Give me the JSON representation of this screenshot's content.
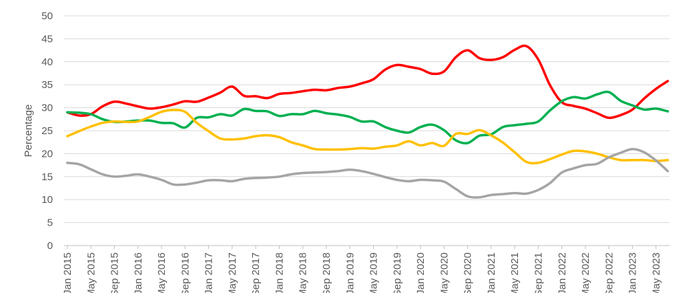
{
  "chart_data": {
    "type": "line",
    "title": "",
    "xlabel": "",
    "ylabel": "Percentage",
    "ylim": [
      0,
      50
    ],
    "y_ticks": [
      0,
      5,
      10,
      15,
      20,
      25,
      30,
      35,
      40,
      45,
      50
    ],
    "grid": true,
    "legend": "none",
    "x_start": "Jan 2015",
    "x_end": "Jul 2023",
    "x_tick_labels": [
      "Jan 2015",
      "May 2015",
      "Sep 2015",
      "Jan 2016",
      "May 2016",
      "Sep 2016",
      "Jan 2017",
      "May 2017",
      "Sep 2017",
      "Jan 2018",
      "May 2018",
      "Sep 2018",
      "Jan 2019",
      "May 2019",
      "Sep 2019",
      "Jan 2020",
      "May 2020",
      "Sep 2020",
      "Jan 2021",
      "May 2021",
      "Sep 2021",
      "Jan 2022",
      "May 2022",
      "Sep 2022",
      "Jan 2023",
      "May 2023"
    ],
    "series": [
      {
        "color": "#ff0000",
        "points": [
          [
            "Jan 2015",
            29
          ],
          [
            "Mar 2015",
            28.3
          ],
          [
            "May 2015",
            28.6
          ],
          [
            "Jul 2015",
            30.3
          ],
          [
            "Sep 2015",
            31.3
          ],
          [
            "Nov 2015",
            30.9
          ],
          [
            "Jan 2016",
            30.3
          ],
          [
            "Mar 2016",
            29.8
          ],
          [
            "May 2016",
            30.1
          ],
          [
            "Jul 2016",
            30.7
          ],
          [
            "Sep 2016",
            31.4
          ],
          [
            "Nov 2016",
            31.3
          ],
          [
            "Jan 2017",
            32.2
          ],
          [
            "Mar 2017",
            33.3
          ],
          [
            "May 2017",
            34.6
          ],
          [
            "Jul 2017",
            32.6
          ],
          [
            "Sep 2017",
            32.5
          ],
          [
            "Nov 2017",
            32.1
          ],
          [
            "Jan 2018",
            33
          ],
          [
            "Mar 2018",
            33.2
          ],
          [
            "May 2018",
            33.6
          ],
          [
            "Jul 2018",
            33.9
          ],
          [
            "Sep 2018",
            33.8
          ],
          [
            "Nov 2018",
            34.3
          ],
          [
            "Jan 2019",
            34.6
          ],
          [
            "Mar 2019",
            35.3
          ],
          [
            "May 2019",
            36.2
          ],
          [
            "Jul 2019",
            38.3
          ],
          [
            "Sep 2019",
            39.3
          ],
          [
            "Nov 2019",
            38.9
          ],
          [
            "Jan 2020",
            38.4
          ],
          [
            "Mar 2020",
            37.4
          ],
          [
            "May 2020",
            37.9
          ],
          [
            "Jul 2020",
            41
          ],
          [
            "Sep 2020",
            42.5
          ],
          [
            "Nov 2020",
            40.8
          ],
          [
            "Jan 2021",
            40.4
          ],
          [
            "Mar 2021",
            41
          ],
          [
            "May 2021",
            42.6
          ],
          [
            "Jul 2021",
            43.4
          ],
          [
            "Sep 2021",
            40.5
          ],
          [
            "Nov 2021",
            34.9
          ],
          [
            "Jan 2022",
            31.2
          ],
          [
            "Mar 2022",
            30.4
          ],
          [
            "May 2022",
            29.8
          ],
          [
            "Jul 2022",
            28.8
          ],
          [
            "Sep 2022",
            27.8
          ],
          [
            "Nov 2022",
            28.4
          ],
          [
            "Jan 2023",
            29.6
          ],
          [
            "Mar 2023",
            32
          ],
          [
            "May 2023",
            34.1
          ],
          [
            "Jul 2023",
            35.8
          ]
        ]
      },
      {
        "color": "#00b050",
        "points": [
          [
            "Jan 2015",
            29
          ],
          [
            "Mar 2015",
            28.9
          ],
          [
            "May 2015",
            28.6
          ],
          [
            "Jul 2015",
            27.5
          ],
          [
            "Sep 2015",
            26.9
          ],
          [
            "Nov 2015",
            27
          ],
          [
            "Jan 2016",
            27.2
          ],
          [
            "Mar 2016",
            27.2
          ],
          [
            "May 2016",
            26.7
          ],
          [
            "Jul 2016",
            26.6
          ],
          [
            "Sep 2016",
            25.7
          ],
          [
            "Nov 2016",
            27.8
          ],
          [
            "Jan 2017",
            27.9
          ],
          [
            "Mar 2017",
            28.6
          ],
          [
            "May 2017",
            28.3
          ],
          [
            "Jul 2017",
            29.7
          ],
          [
            "Sep 2017",
            29.3
          ],
          [
            "Nov 2017",
            29.2
          ],
          [
            "Jan 2018",
            28.2
          ],
          [
            "Mar 2018",
            28.6
          ],
          [
            "May 2018",
            28.6
          ],
          [
            "Jul 2018",
            29.3
          ],
          [
            "Sep 2018",
            28.8
          ],
          [
            "Nov 2018",
            28.5
          ],
          [
            "Jan 2019",
            28
          ],
          [
            "Mar 2019",
            27
          ],
          [
            "May 2019",
            27
          ],
          [
            "Jul 2019",
            25.8
          ],
          [
            "Sep 2019",
            25
          ],
          [
            "Nov 2019",
            24.6
          ],
          [
            "Jan 2020",
            25.8
          ],
          [
            "Mar 2020",
            26.3
          ],
          [
            "May 2020",
            25.1
          ],
          [
            "Jul 2020",
            22.9
          ],
          [
            "Sep 2020",
            22.3
          ],
          [
            "Nov 2020",
            23.9
          ],
          [
            "Jan 2021",
            24.2
          ],
          [
            "Mar 2021",
            25.8
          ],
          [
            "May 2021",
            26.2
          ],
          [
            "Jul 2021",
            26.5
          ],
          [
            "Sep 2021",
            27
          ],
          [
            "Nov 2021",
            29.4
          ],
          [
            "Jan 2022",
            31.4
          ],
          [
            "Mar 2022",
            32.3
          ],
          [
            "May 2022",
            32
          ],
          [
            "Jul 2022",
            32.9
          ],
          [
            "Sep 2022",
            33.4
          ],
          [
            "Nov 2022",
            31.5
          ],
          [
            "Jan 2023",
            30.5
          ],
          [
            "Mar 2023",
            29.6
          ],
          [
            "May 2023",
            29.8
          ],
          [
            "Jul 2023",
            29.2
          ]
        ]
      },
      {
        "color": "#ffc000",
        "points": [
          [
            "Jan 2015",
            23.8
          ],
          [
            "Mar 2015",
            24.9
          ],
          [
            "May 2015",
            25.9
          ],
          [
            "Jul 2015",
            26.7
          ],
          [
            "Sep 2015",
            27
          ],
          [
            "Nov 2015",
            26.9
          ],
          [
            "Jan 2016",
            27
          ],
          [
            "Mar 2016",
            28
          ],
          [
            "May 2016",
            29.1
          ],
          [
            "Jul 2016",
            29.5
          ],
          [
            "Sep 2016",
            29.1
          ],
          [
            "Nov 2016",
            26.7
          ],
          [
            "Jan 2017",
            24.9
          ],
          [
            "Mar 2017",
            23.3
          ],
          [
            "May 2017",
            23.1
          ],
          [
            "Jul 2017",
            23.3
          ],
          [
            "Sep 2017",
            23.8
          ],
          [
            "Nov 2017",
            24
          ],
          [
            "Jan 2018",
            23.6
          ],
          [
            "Mar 2018",
            22.5
          ],
          [
            "May 2018",
            21.8
          ],
          [
            "Jul 2018",
            21
          ],
          [
            "Sep 2018",
            20.9
          ],
          [
            "Nov 2018",
            20.9
          ],
          [
            "Jan 2019",
            21
          ],
          [
            "Mar 2019",
            21.2
          ],
          [
            "May 2019",
            21.1
          ],
          [
            "Jul 2019",
            21.5
          ],
          [
            "Sep 2019",
            21.8
          ],
          [
            "Nov 2019",
            22.7
          ],
          [
            "Jan 2020",
            21.8
          ],
          [
            "Mar 2020",
            22.3
          ],
          [
            "May 2020",
            21.7
          ],
          [
            "Jul 2020",
            24.3
          ],
          [
            "Sep 2020",
            24.3
          ],
          [
            "Nov 2020",
            25.1
          ],
          [
            "Jan 2021",
            24
          ],
          [
            "Mar 2021",
            22.4
          ],
          [
            "May 2021",
            20.3
          ],
          [
            "Jul 2021",
            18.2
          ],
          [
            "Sep 2021",
            18
          ],
          [
            "Nov 2021",
            18.8
          ],
          [
            "Jan 2022",
            19.8
          ],
          [
            "Mar 2022",
            20.6
          ],
          [
            "May 2022",
            20.5
          ],
          [
            "Jul 2022",
            20
          ],
          [
            "Sep 2022",
            19.2
          ],
          [
            "Nov 2022",
            18.6
          ],
          [
            "Jan 2023",
            18.6
          ],
          [
            "Mar 2023",
            18.6
          ],
          [
            "May 2023",
            18.4
          ],
          [
            "Jul 2023",
            18.6
          ]
        ]
      },
      {
        "color": "#a5a5a5",
        "points": [
          [
            "Jan 2015",
            18
          ],
          [
            "Mar 2015",
            17.7
          ],
          [
            "May 2015",
            16.6
          ],
          [
            "Jul 2015",
            15.5
          ],
          [
            "Sep 2015",
            15
          ],
          [
            "Nov 2015",
            15.2
          ],
          [
            "Jan 2016",
            15.5
          ],
          [
            "Mar 2016",
            15
          ],
          [
            "May 2016",
            14.3
          ],
          [
            "Jul 2016",
            13.3
          ],
          [
            "Sep 2016",
            13.3
          ],
          [
            "Nov 2016",
            13.7
          ],
          [
            "Jan 2017",
            14.2
          ],
          [
            "Mar 2017",
            14.2
          ],
          [
            "May 2017",
            14
          ],
          [
            "Jul 2017",
            14.5
          ],
          [
            "Sep 2017",
            14.7
          ],
          [
            "Nov 2017",
            14.8
          ],
          [
            "Jan 2018",
            15
          ],
          [
            "Mar 2018",
            15.5
          ],
          [
            "May 2018",
            15.8
          ],
          [
            "Jul 2018",
            15.9
          ],
          [
            "Sep 2018",
            16
          ],
          [
            "Nov 2018",
            16.2
          ],
          [
            "Jan 2019",
            16.5
          ],
          [
            "Mar 2019",
            16.2
          ],
          [
            "May 2019",
            15.6
          ],
          [
            "Jul 2019",
            14.9
          ],
          [
            "Sep 2019",
            14.3
          ],
          [
            "Nov 2019",
            14
          ],
          [
            "Jan 2020",
            14.3
          ],
          [
            "Mar 2020",
            14.2
          ],
          [
            "May 2020",
            13.9
          ],
          [
            "Jul 2020",
            12.3
          ],
          [
            "Sep 2020",
            10.7
          ],
          [
            "Nov 2020",
            10.5
          ],
          [
            "Jan 2021",
            11
          ],
          [
            "Mar 2021",
            11.2
          ],
          [
            "May 2021",
            11.4
          ],
          [
            "Jul 2021",
            11.3
          ],
          [
            "Sep 2021",
            12.1
          ],
          [
            "Nov 2021",
            13.6
          ],
          [
            "Jan 2022",
            15.9
          ],
          [
            "Mar 2022",
            16.8
          ],
          [
            "May 2022",
            17.5
          ],
          [
            "Jul 2022",
            17.8
          ],
          [
            "Sep 2022",
            19.2
          ],
          [
            "Nov 2022",
            20.2
          ],
          [
            "Jan 2023",
            21
          ],
          [
            "Mar 2023",
            20.3
          ],
          [
            "May 2023",
            18.5
          ],
          [
            "Jul 2023",
            16.2
          ]
        ]
      }
    ]
  }
}
